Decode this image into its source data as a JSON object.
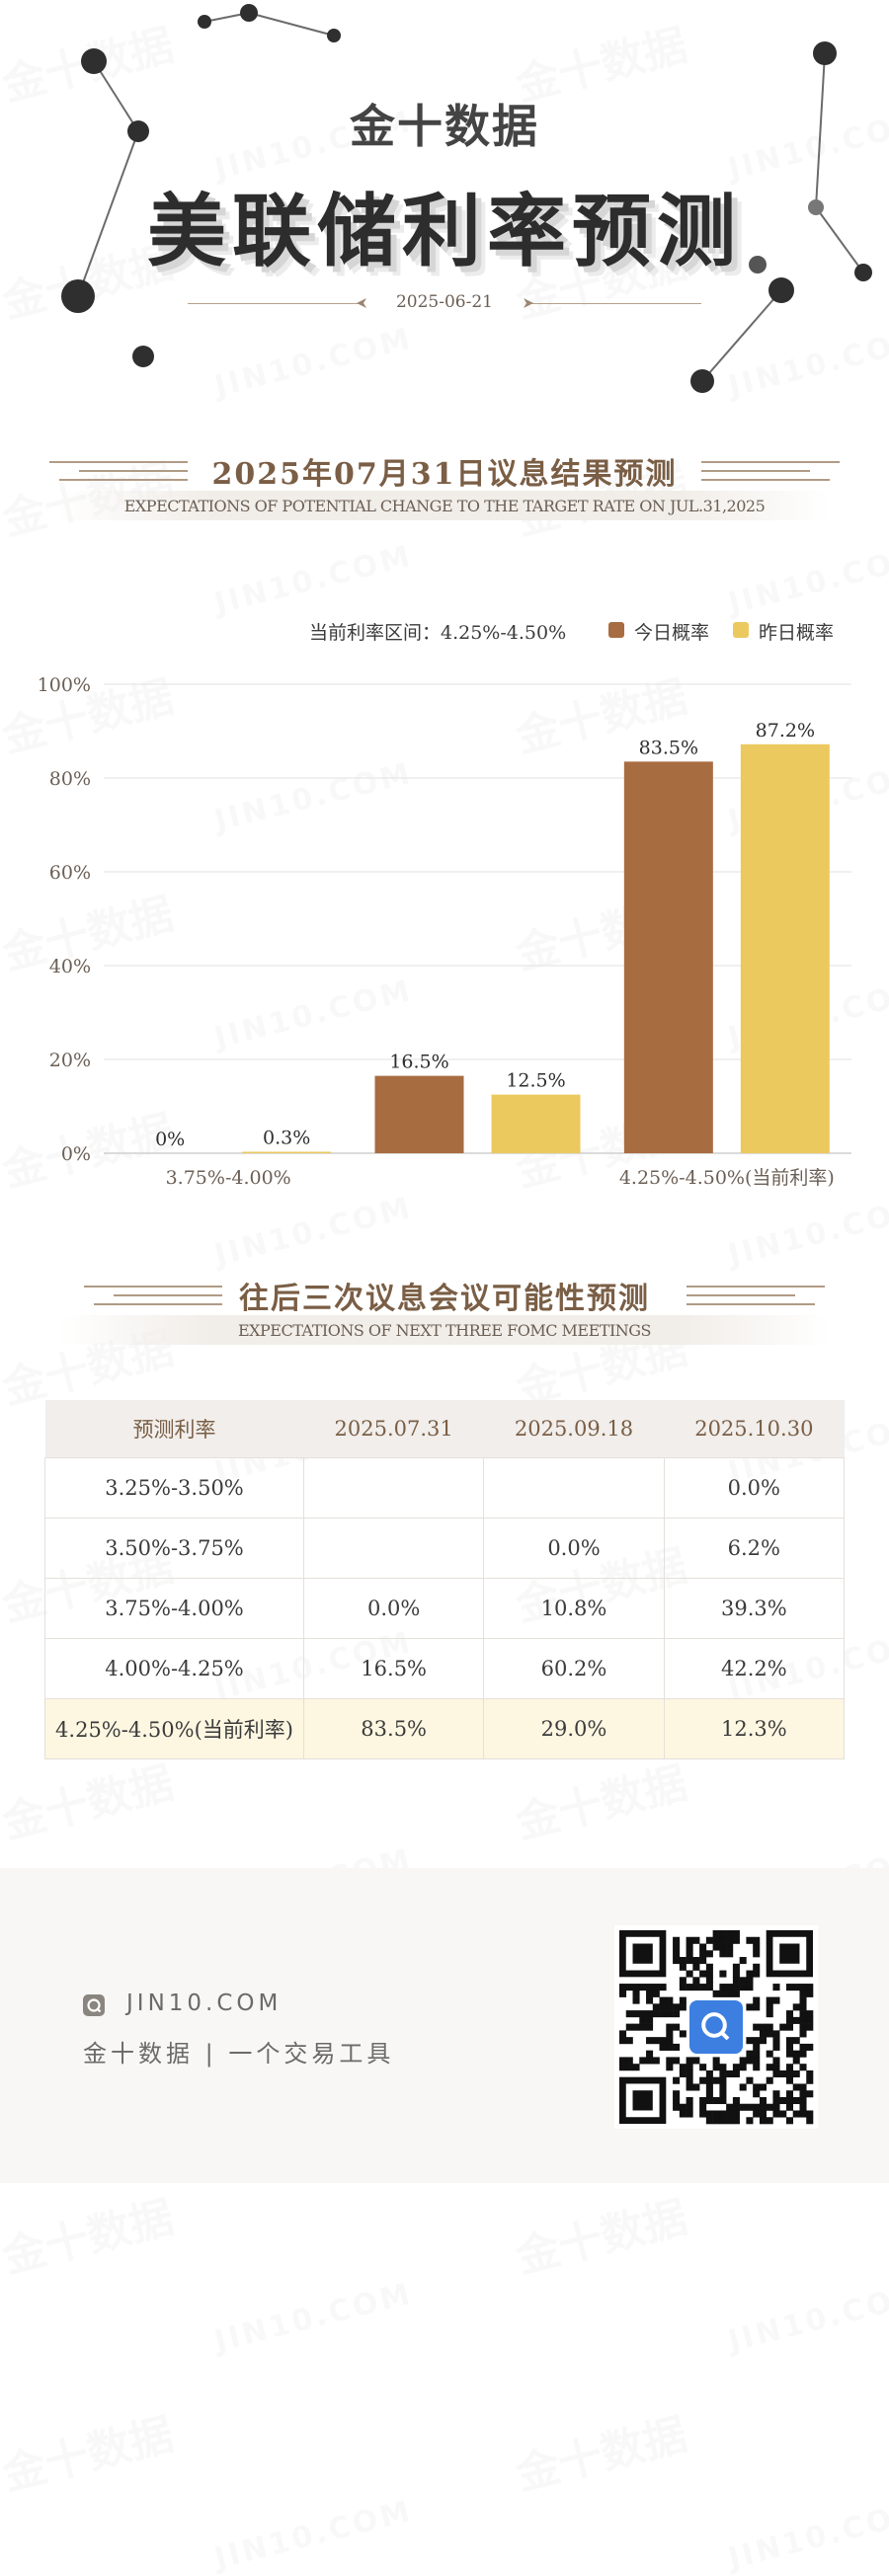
{
  "header": {
    "brand": "金十数据",
    "title": "美联储利率预测",
    "date": "2025-06-21"
  },
  "section1": {
    "title": "2025年07月31日议息结果预测",
    "subtitle": "EXPECTATIONS OF POTENTIAL CHANGE TO THE TARGET RATE ON JUL.31,2025"
  },
  "legend": {
    "current_rate_label": "当前利率区间：4.25%-4.50%",
    "today_label": "今日概率",
    "yesterday_label": "昨日概率",
    "today_color": "#a86c41",
    "yesterday_color": "#ecc95e"
  },
  "chart_data": {
    "type": "bar",
    "categories": [
      "3.75%-4.00%",
      "",
      "4.25%-4.50%(当前利率)"
    ],
    "series": [
      {
        "name": "今日概率",
        "values": [
          0,
          16.5,
          83.5
        ],
        "labels": [
          "0%",
          "16.5%",
          "83.5%"
        ],
        "color": "#a86c41"
      },
      {
        "name": "昨日概率",
        "values": [
          0.3,
          12.5,
          87.2
        ],
        "labels": [
          "0.3%",
          "12.5%",
          "87.2%"
        ],
        "color": "#ecc95e"
      }
    ],
    "ylim": [
      0,
      100
    ],
    "yticks": [
      "0%",
      "20%",
      "40%",
      "60%",
      "80%",
      "100%"
    ],
    "grid": true,
    "legend_position": "top-right"
  },
  "section2": {
    "title": "往后三次议息会议可能性预测",
    "subtitle": "EXPECTATIONS OF NEXT THREE FOMC MEETINGS"
  },
  "table": {
    "headers": [
      "预测利率",
      "2025.07.31",
      "2025.09.18",
      "2025.10.30"
    ],
    "rows": [
      [
        "3.25%-3.50%",
        "",
        "",
        "0.0%"
      ],
      [
        "3.50%-3.75%",
        "",
        "0.0%",
        "6.2%"
      ],
      [
        "3.75%-4.00%",
        "0.0%",
        "10.8%",
        "39.3%"
      ],
      [
        "4.00%-4.25%",
        "16.5%",
        "60.2%",
        "42.2%"
      ],
      [
        "4.25%-4.50%(当前利率)",
        "83.5%",
        "29.0%",
        "12.3%"
      ]
    ],
    "highlight_color": "#fdf6e1"
  },
  "footer": {
    "url": "JIN10.COM",
    "slogan": "金十数据 | 一个交易工具"
  },
  "watermark": {
    "cn": "金十数据",
    "en": "JIN10.COM"
  }
}
